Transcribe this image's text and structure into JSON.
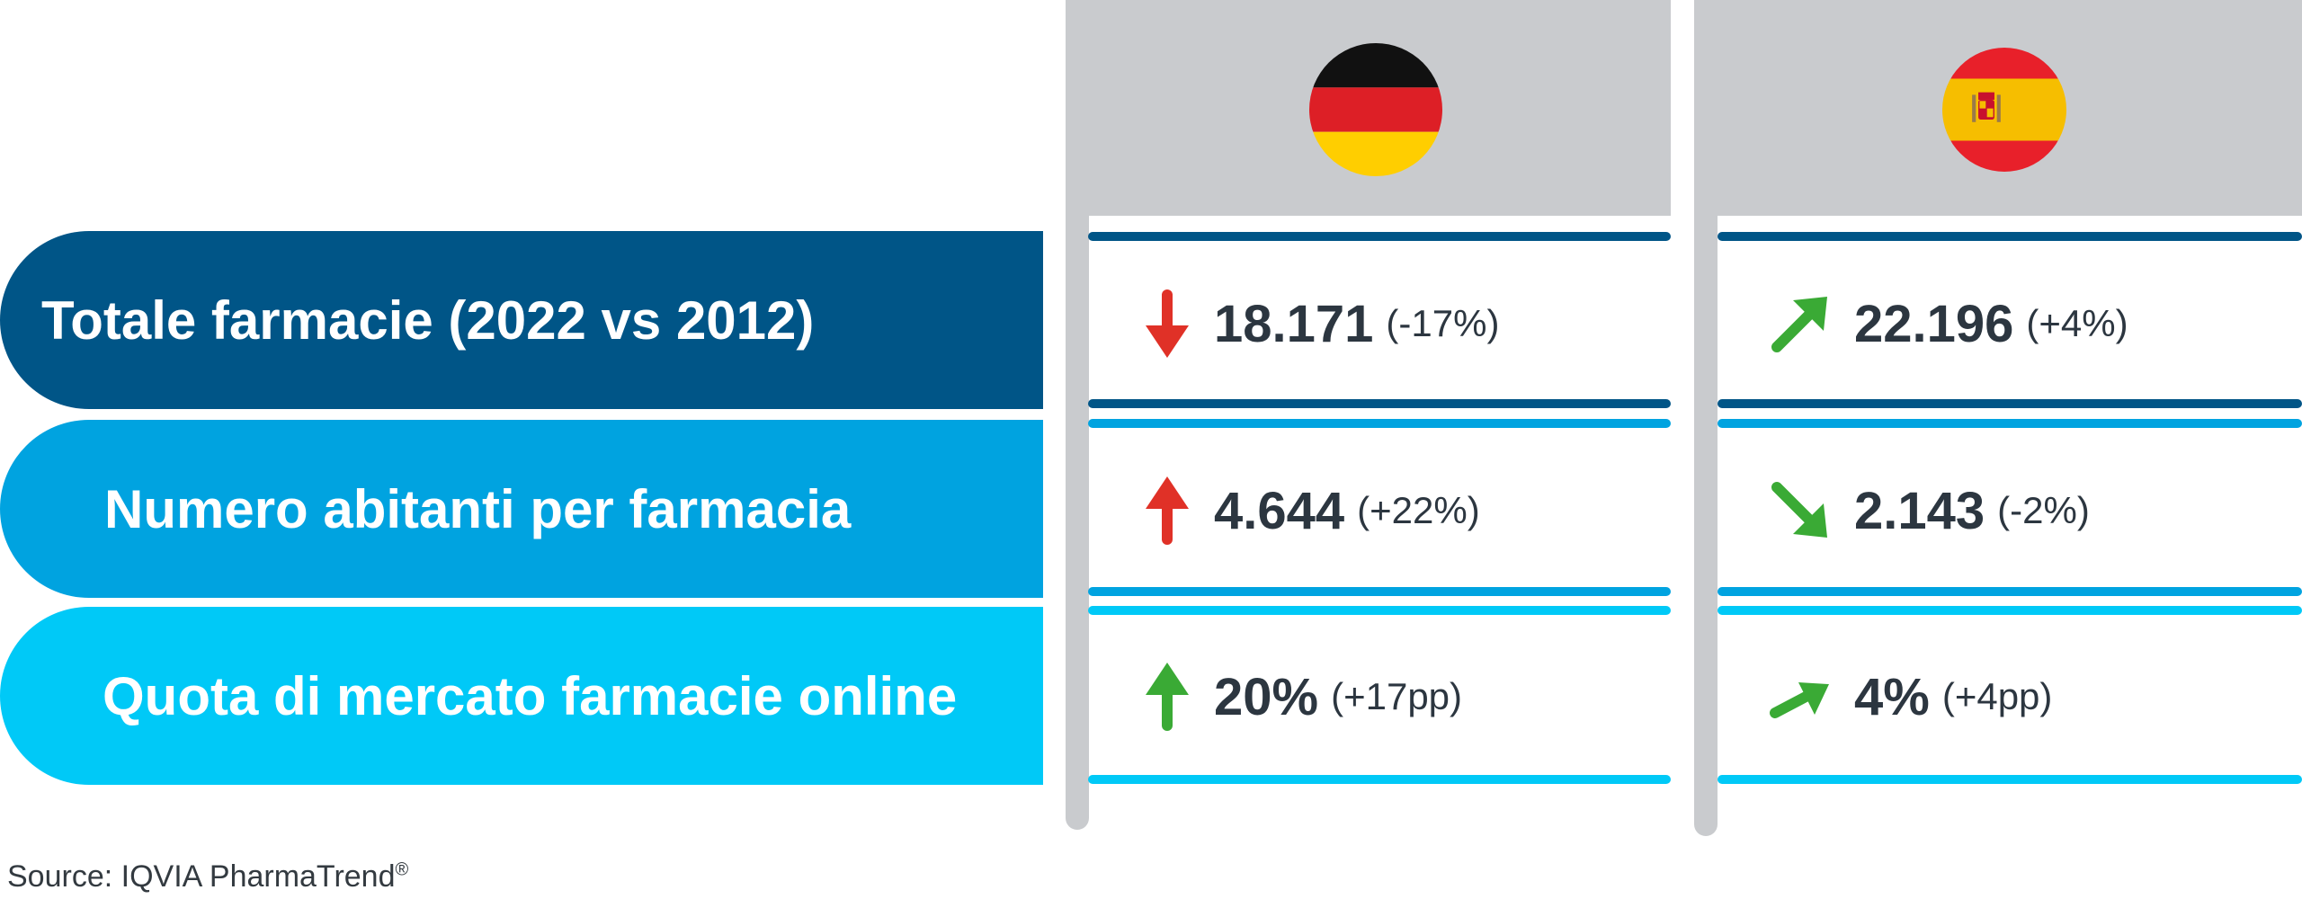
{
  "rows": [
    {
      "label": "Totale farmacie (2022 vs 2012)",
      "color": "#005587"
    },
    {
      "label": "Numero abitanti per farmacia",
      "color": "#00a3e0"
    },
    {
      "label": "Quota di mercato farmacie online",
      "color": "#00c9f7"
    }
  ],
  "countries": [
    {
      "flag": "germany-flag-icon",
      "cells": [
        {
          "trend_icon": "arrow-down-icon",
          "trend_color": "#e03127",
          "value": "18.171",
          "change": "(-17%)"
        },
        {
          "trend_icon": "arrow-up-icon",
          "trend_color": "#e03127",
          "value": "4.644",
          "change": "(+22%)"
        },
        {
          "trend_icon": "arrow-up-icon",
          "trend_color": "#3aaa35",
          "value": "20%",
          "change": "(+17pp)"
        }
      ]
    },
    {
      "flag": "spain-flag-icon",
      "cells": [
        {
          "trend_icon": "arrow-up-right-icon",
          "trend_color": "#3aaa35",
          "value": "22.196",
          "change": "(+4%)"
        },
        {
          "trend_icon": "arrow-down-right-icon",
          "trend_color": "#3aaa35",
          "value": "2.143",
          "change": "(-2%)"
        },
        {
          "trend_icon": "arrow-up-right-icon",
          "trend_color": "#3aaa35",
          "value": "4%",
          "change": "(+4pp)"
        }
      ]
    }
  ],
  "source": {
    "text": "Source: IQVIA PharmaTrend",
    "mark": "®"
  }
}
